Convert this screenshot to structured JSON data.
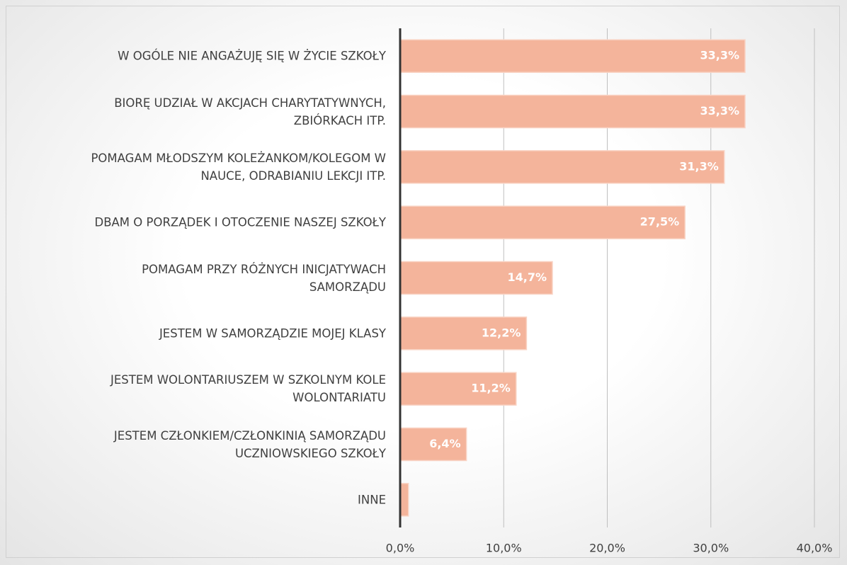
{
  "chart_data": {
    "type": "bar",
    "orientation": "horizontal",
    "categories": [
      "W OGÓLE NIE ANGAŻUJĘ SIĘ W ŻYCIE SZKOŁY",
      "BIORĘ UDZIAŁ W AKCJACH CHARYTATYWNYCH,\nZBIÓRKACH ITP.",
      "POMAGAM MŁODSZYM KOLEŻANKOM/KOLEGOM W\nNAUCE, ODRABIANIU LEKCJI ITP.",
      "DBAM O PORZĄDEK I OTOCZENIE NASZEJ SZKOŁY",
      "POMAGAM PRZY RÓŻNYCH INICJATYWACH\nSAMORZĄDU",
      "JESTEM W SAMORZĄDZIE MOJEJ KLASY",
      "JESTEM WOLONTARIUSZEM W SZKOLNYM KOLE\nWOLONTARIATU",
      "JESTEM CZŁONKIEM/CZŁONKINIĄ SAMORZĄDU\nUCZNIOWSKIEGO SZKOŁY",
      "INNE"
    ],
    "values": [
      33.3,
      33.3,
      31.3,
      27.5,
      14.7,
      12.2,
      11.2,
      6.4,
      0.8
    ],
    "value_labels": [
      "33,3%",
      "33,3%",
      "31,3%",
      "27,5%",
      "14,7%",
      "12,2%",
      "11,2%",
      "6,4%",
      null
    ],
    "color": "#f4b49b",
    "xlim": [
      0,
      40
    ],
    "xticks": [
      {
        "value": 0,
        "label": "0,0%"
      },
      {
        "value": 10,
        "label": "10,0%"
      },
      {
        "value": 20,
        "label": "20,0%"
      },
      {
        "value": 30,
        "label": "30,0%"
      },
      {
        "value": 40,
        "label": "40,0%"
      }
    ],
    "grid": true
  }
}
